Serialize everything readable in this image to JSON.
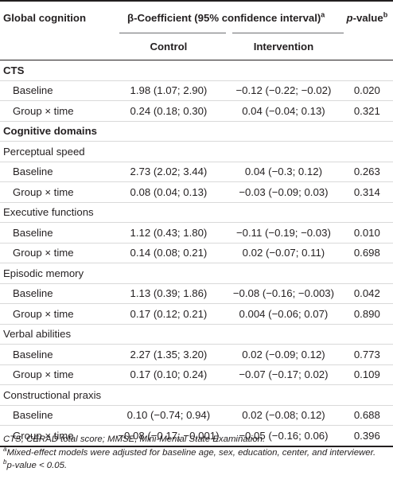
{
  "header": {
    "col_label": "Global cognition",
    "col_span": "β-Coefficient (95% confidence interval)",
    "col_span_sup": "a",
    "col_p_italic": "p",
    "col_p_rest": "-value",
    "col_p_sup": "b",
    "col_control": "Control",
    "col_intervention": "Intervention"
  },
  "rows": [
    {
      "label": "CTS"
    },
    {
      "label": "Baseline",
      "control": "1.98 (1.07; 2.90)",
      "intervention": "−0.12 (−0.22; −0.02)",
      "p": "0.020"
    },
    {
      "label": "Group × time",
      "control": "0.24 (0.18; 0.30)",
      "intervention": "0.04 (−0.04; 0.13)",
      "p": "0.321"
    },
    {
      "label": "Cognitive domains"
    },
    {
      "label": "Perceptual speed"
    },
    {
      "label": "Baseline",
      "control": "2.73 (2.02; 3.44)",
      "intervention": "0.04 (−0.3; 0.12)",
      "p": "0.263"
    },
    {
      "label": "Group × time",
      "control": "0.08 (0.04; 0.13)",
      "intervention": "−0.03 (−0.09; 0.03)",
      "p": "0.314"
    },
    {
      "label": "Executive functions"
    },
    {
      "label": "Baseline",
      "control": "1.12 (0.43; 1.80)",
      "intervention": "−0.11 (−0.19; −0.03)",
      "p": "0.010"
    },
    {
      "label": "Group × time",
      "control": "0.14 (0.08; 0.21)",
      "intervention": "0.02 (−0.07; 0.11)",
      "p": "0.698"
    },
    {
      "label": "Episodic memory"
    },
    {
      "label": "Baseline",
      "control": "1.13 (0.39; 1.86)",
      "intervention": "−0.08 (−0.16; −0.003)",
      "p": "0.042"
    },
    {
      "label": "Group × time",
      "control": "0.17 (0.12; 0.21)",
      "intervention": "0.004 (−0.06; 0.07)",
      "p": "0.890"
    },
    {
      "label": "Verbal abilities"
    },
    {
      "label": "Baseline",
      "control": "2.27 (1.35; 3.20)",
      "intervention": "0.02 (−0.09; 0.12)",
      "p": "0.773"
    },
    {
      "label": "Group × time",
      "control": "0.17 (0.10; 0.24)",
      "intervention": "−0.07 (−0.17; 0.02)",
      "p": "0.109"
    },
    {
      "label": "Constructional praxis"
    },
    {
      "label": "Baseline",
      "control": "0.10 (−0.74; 0.94)",
      "intervention": "0.02 (−0.08; 0.12)",
      "p": "0.688"
    },
    {
      "label": "Group × time",
      "control": "−0.08 (−0.17; −0.001)",
      "intervention": "−0.05 (−0.16; 0.06)",
      "p": "0.396"
    }
  ],
  "footnotes": {
    "abbrev": "CTS, CERAD total score; MMSE, Mini-Mental State Examination.",
    "a_mark": "a",
    "a_text": "Mixed-effect models were adjusted for baseline age, sex, education, center, and interviewer.",
    "b_mark": "b",
    "b_text": "p-value < 0.05."
  }
}
